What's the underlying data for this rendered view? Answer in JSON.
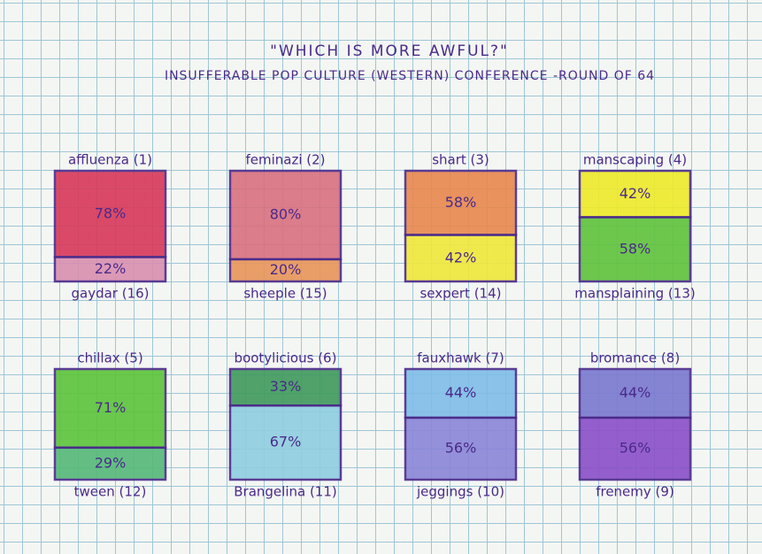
{
  "title": "\"WHICH IS MORE AWFUL?\"",
  "subtitle": "INSUFFERABLE POP CULTURE (WESTERN) CONFERENCE -ROUND OF 64",
  "chart_data": [
    {
      "type": "split-square",
      "categories": [
        "affluenza (1)",
        "gaydar (16)"
      ],
      "values": [
        78,
        22
      ],
      "value_labels": [
        "78%",
        "22%"
      ],
      "colors": [
        "#d8385a",
        "#d98fb0"
      ]
    },
    {
      "type": "split-square",
      "categories": [
        "feminazi (2)",
        "sheeple (15)"
      ],
      "values": [
        80,
        20
      ],
      "value_labels": [
        "80%",
        "20%"
      ],
      "colors": [
        "#d9707f",
        "#e8955a"
      ]
    },
    {
      "type": "split-square",
      "categories": [
        "shart (3)",
        "sexpert (14)"
      ],
      "values": [
        58,
        42
      ],
      "value_labels": [
        "58%",
        "42%"
      ],
      "colors": [
        "#e8884e",
        "#f0e83a"
      ]
    },
    {
      "type": "split-square",
      "categories": [
        "manscaping (4)",
        "mansplaining (13)"
      ],
      "values": [
        42,
        58
      ],
      "value_labels": [
        "42%",
        "58%"
      ],
      "colors": [
        "#eeea2a",
        "#5fc23c"
      ]
    },
    {
      "type": "split-square",
      "categories": [
        "chillax (5)",
        "tween (12)"
      ],
      "values": [
        71,
        29
      ],
      "value_labels": [
        "71%",
        "29%"
      ],
      "colors": [
        "#5cc43a",
        "#55b878"
      ]
    },
    {
      "type": "split-square",
      "categories": [
        "bootylicious (6)",
        "Brangelina (11)"
      ],
      "values": [
        33,
        67
      ],
      "value_labels": [
        "33%",
        "67%"
      ],
      "colors": [
        "#3f9a5c",
        "#8fcde0"
      ]
    },
    {
      "type": "split-square",
      "categories": [
        "fauxhawk (7)",
        "jeggings (10)"
      ],
      "values": [
        44,
        56
      ],
      "value_labels": [
        "44%",
        "56%"
      ],
      "colors": [
        "#7fbde8",
        "#8a86d8"
      ]
    },
    {
      "type": "split-square",
      "categories": [
        "bromance (8)",
        "frenemy (9)"
      ],
      "values": [
        44,
        56
      ],
      "value_labels": [
        "44%",
        "56%"
      ],
      "colors": [
        "#7a78d0",
        "#8a4fc8"
      ]
    }
  ]
}
